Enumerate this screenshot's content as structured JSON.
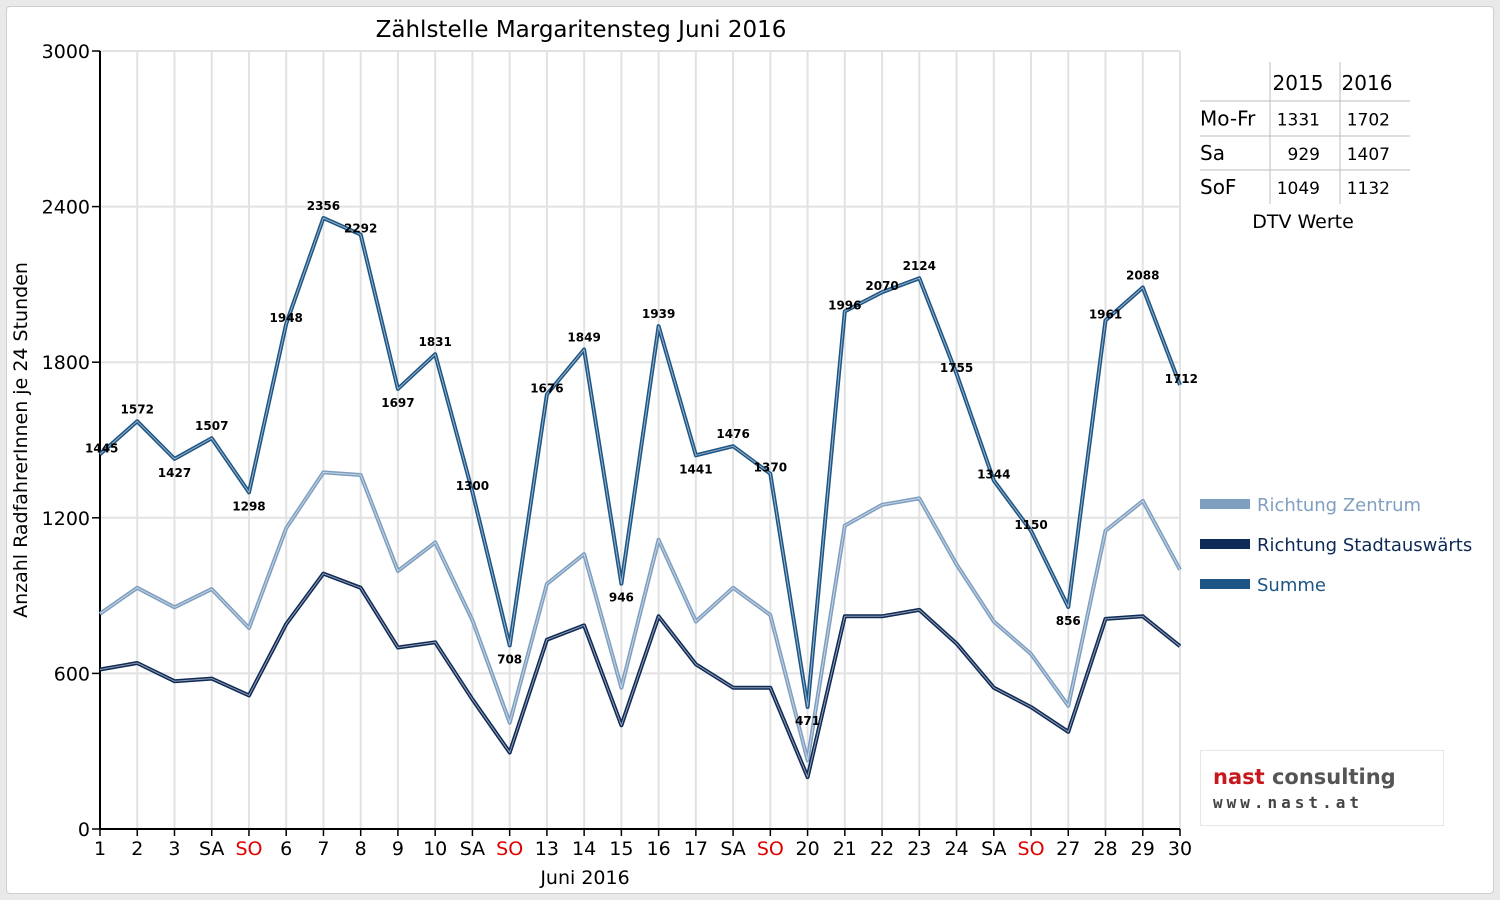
{
  "chart_data": {
    "type": "line",
    "title": "Zählstelle Margaritensteg Juni 2016",
    "xlabel": "Juni 2016",
    "ylabel": "Anzahl RadfahrerInnen je 24 Stunden",
    "ylim": [
      0,
      3000
    ],
    "yticks": [
      "0",
      "600",
      "1200",
      "1800",
      "2400",
      "3000"
    ],
    "grid": true,
    "legend_position": "right",
    "categories": [
      "1",
      "2",
      "3",
      "SA",
      "SO",
      "6",
      "7",
      "8",
      "9",
      "10",
      "SA",
      "SO",
      "13",
      "14",
      "15",
      "16",
      "17",
      "SA",
      "SO",
      "20",
      "21",
      "22",
      "23",
      "24",
      "SA",
      "SO",
      "27",
      "28",
      "29",
      "30"
    ],
    "weekend_labels": [
      "SO"
    ],
    "series": [
      {
        "name": "Richtung Zentrum",
        "color": "#7f9fc0",
        "values": [
          830,
          930,
          855,
          925,
          775,
          1160,
          1375,
          1365,
          995,
          1105,
          805,
          410,
          945,
          1060,
          545,
          1115,
          800,
          930,
          825,
          265,
          1170,
          1250,
          1275,
          1020,
          800,
          675,
          475,
          1150,
          1265,
          1000
        ]
      },
      {
        "name": "Richtung Stadtauswärts",
        "color": "#0f2a56",
        "values": [
          615,
          640,
          570,
          580,
          515,
          790,
          985,
          930,
          700,
          720,
          500,
          295,
          730,
          785,
          400,
          820,
          635,
          545,
          545,
          200,
          820,
          820,
          845,
          715,
          545,
          470,
          375,
          810,
          820,
          705
        ]
      },
      {
        "name": "Summe",
        "color": "#1d5585",
        "values": [
          1445,
          1572,
          1427,
          1507,
          1298,
          1948,
          2356,
          2292,
          1697,
          1831,
          1300,
          708,
          1676,
          1849,
          946,
          1939,
          1441,
          1476,
          1370,
          471,
          1996,
          2070,
          2124,
          1755,
          1344,
          1150,
          856,
          1961,
          2088,
          1712
        ]
      }
    ],
    "summe_labels": [
      "1445",
      "1572",
      "1427",
      "1507",
      "1298",
      "1948",
      "2356",
      "2292",
      "1697",
      "1831",
      "1300",
      "708",
      "1676",
      "1849",
      "946",
      "1939",
      "1441",
      "1476",
      "1370",
      "471",
      "1996",
      "2070",
      "2124",
      "1755",
      "1344",
      "1150",
      "856",
      "1961",
      "2088",
      "1712"
    ]
  },
  "dtv_table": {
    "headers": [
      "",
      "2015",
      "2016"
    ],
    "rows": [
      [
        "Mo-Fr",
        "1331",
        "1702"
      ],
      [
        "Sa",
        "929",
        "1407"
      ],
      [
        "SoF",
        "1049",
        "1132"
      ]
    ],
    "caption": "DTV Werte"
  },
  "logo": {
    "name_part1": "nast",
    "name_part2": "consulting",
    "url": "www.nast.at"
  },
  "colors": {
    "weekend_red": "#e00000",
    "grid": "#e2e2e2"
  }
}
